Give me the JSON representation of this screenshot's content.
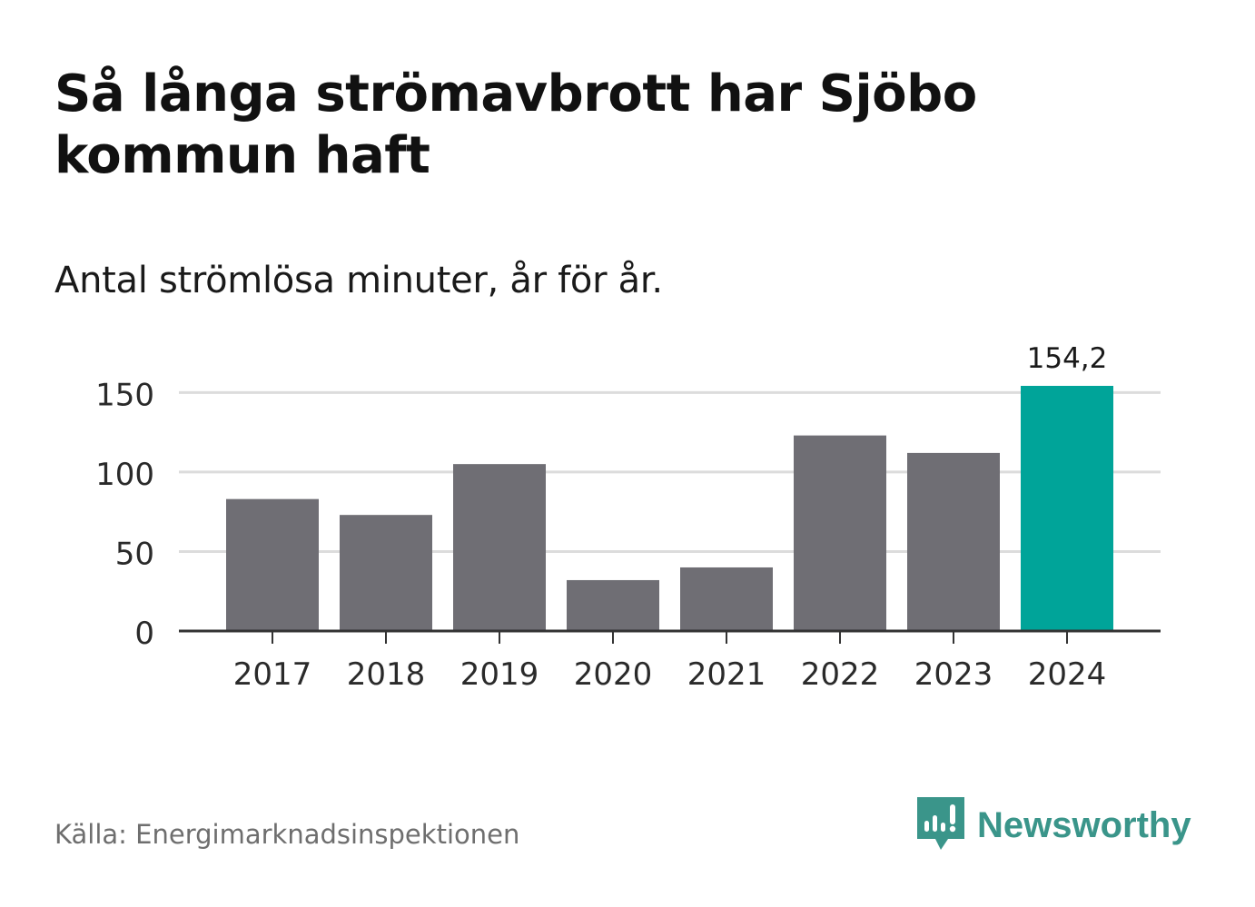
{
  "title": "Så långa strömavbrott har Sjöbo kommun haft",
  "subtitle": "Antal strömlösa minuter, år för år.",
  "source": "Källa: Energimarknadsinspektionen",
  "brand": {
    "name": "Newsworthy",
    "icon": "newsworthy-logo-icon",
    "color": "#3a958a"
  },
  "colors": {
    "bar": "#6f6e74",
    "highlight": "#00a499",
    "grid": "#dcdcdc",
    "axis": "#333333"
  },
  "chart_data": {
    "type": "bar",
    "categories": [
      "2017",
      "2018",
      "2019",
      "2020",
      "2021",
      "2022",
      "2023",
      "2024"
    ],
    "values": [
      83,
      73,
      105,
      32,
      40,
      123,
      112,
      154.2
    ],
    "highlight_index": 7,
    "data_labels": [
      null,
      null,
      null,
      null,
      null,
      null,
      null,
      "154,2"
    ],
    "yticks": [
      0,
      50,
      100,
      150
    ],
    "ylim": [
      0,
      154.2
    ],
    "grid": true,
    "legend": "none"
  }
}
